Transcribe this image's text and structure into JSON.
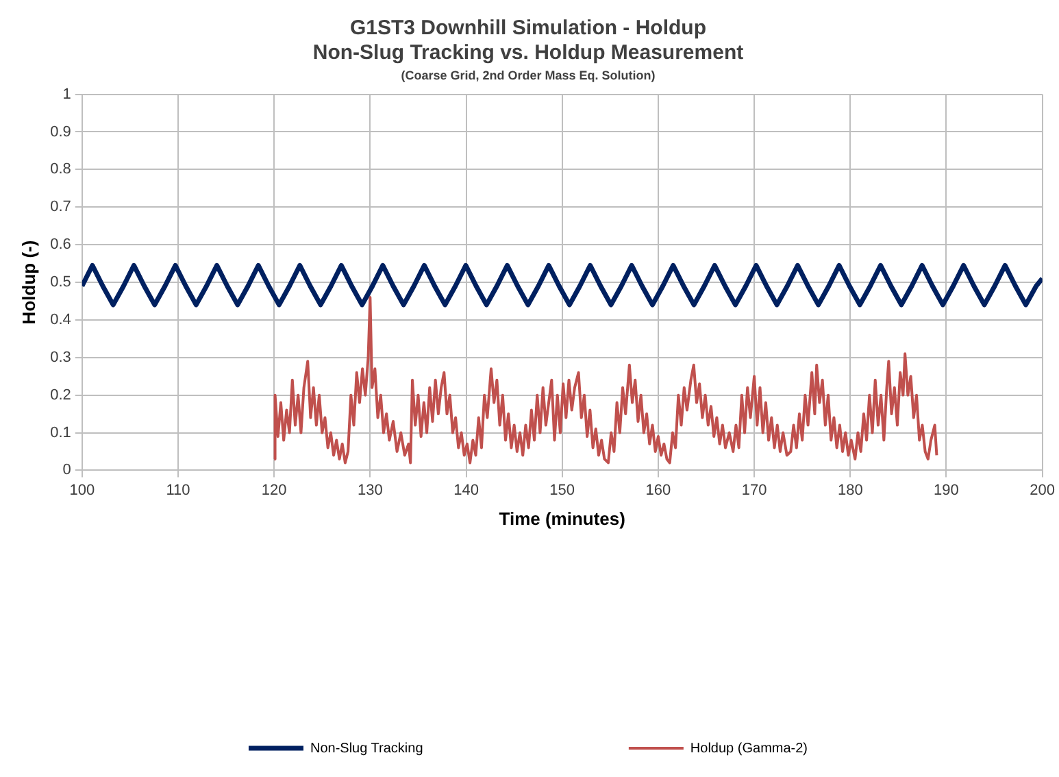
{
  "chart_data": {
    "type": "line",
    "title": "G1ST3 Downhill Simulation - Holdup",
    "subtitle": "Non-Slug Tracking vs. Holdup Measurement",
    "annotations": [
      "(Coarse Grid, 2nd Order Mass Eq. Solution)"
    ],
    "xlabel": "Time (minutes)",
    "ylabel": "Holdup (-)",
    "xlim": [
      100,
      200
    ],
    "xticks": [
      100,
      110,
      120,
      130,
      140,
      150,
      160,
      170,
      180,
      190,
      200
    ],
    "ylim": [
      0,
      1
    ],
    "yticks": [
      0,
      0.1,
      0.2,
      0.3,
      0.4,
      0.5,
      0.6,
      0.7,
      0.8,
      0.9,
      1
    ],
    "grid": true,
    "legend": "bottom",
    "marker": "none",
    "line_style": "solid",
    "series": [
      {
        "name": "Non-Slug Tracking",
        "color": "#002060",
        "x": [
          100,
          101.08,
          102.16,
          103.24,
          104.32,
          105.4,
          106.48,
          107.56,
          108.64,
          109.72,
          110.8,
          111.88,
          112.96,
          114.04,
          115.12,
          116.2,
          117.28,
          118.36,
          119.44,
          120.52,
          121.6,
          122.68,
          123.76,
          124.84,
          125.92,
          127,
          128.08,
          129.16,
          130.24,
          131.32,
          132.4,
          133.48,
          134.56,
          135.64,
          136.72,
          137.8,
          138.88,
          139.96,
          141.04,
          142.12,
          143.2,
          144.28,
          145.36,
          146.44,
          147.52,
          148.6,
          149.68,
          150.76,
          151.84,
          152.92,
          154,
          155.08,
          156.16,
          157.24,
          158.32,
          159.4,
          160.48,
          161.56,
          162.64,
          163.72,
          164.8,
          165.88,
          166.96,
          168.04,
          169.12,
          170.2,
          171.28,
          172.36,
          173.44,
          174.52,
          175.6,
          176.68,
          177.76,
          178.84,
          179.92,
          181,
          182.08,
          183.16,
          184.24,
          185.32,
          186.4,
          187.48,
          188.56,
          189.64,
          190.72,
          191.8,
          192.88,
          193.96,
          195.04,
          196.12,
          197.2,
          198.28,
          199.36,
          200
        ],
        "values": [
          0.49,
          0.545,
          0.49,
          0.44,
          0.49,
          0.545,
          0.49,
          0.44,
          0.49,
          0.545,
          0.49,
          0.44,
          0.49,
          0.545,
          0.49,
          0.44,
          0.49,
          0.545,
          0.49,
          0.44,
          0.49,
          0.545,
          0.49,
          0.44,
          0.49,
          0.545,
          0.49,
          0.44,
          0.49,
          0.545,
          0.49,
          0.44,
          0.49,
          0.545,
          0.49,
          0.44,
          0.49,
          0.545,
          0.49,
          0.44,
          0.49,
          0.545,
          0.49,
          0.44,
          0.49,
          0.545,
          0.49,
          0.44,
          0.49,
          0.545,
          0.49,
          0.44,
          0.49,
          0.545,
          0.49,
          0.44,
          0.49,
          0.545,
          0.49,
          0.44,
          0.49,
          0.545,
          0.49,
          0.44,
          0.49,
          0.545,
          0.49,
          0.44,
          0.49,
          0.545,
          0.49,
          0.44,
          0.49,
          0.545,
          0.49,
          0.44,
          0.49,
          0.545,
          0.49,
          0.44,
          0.49,
          0.545,
          0.49,
          0.44,
          0.49,
          0.545,
          0.49,
          0.44,
          0.49,
          0.545,
          0.49,
          0.44,
          0.49,
          0.51
        ]
      },
      {
        "name": "Holdup (Gamma-2)",
        "color": "#c0504d",
        "x": [
          120,
          120.1,
          120.4,
          120.7,
          121,
          121.3,
          121.6,
          121.9,
          122.2,
          122.5,
          122.8,
          123.1,
          123.5,
          123.8,
          124.1,
          124.4,
          124.7,
          125,
          125.3,
          125.6,
          125.9,
          126.2,
          126.5,
          126.8,
          127.1,
          127.4,
          127.7,
          128,
          128.3,
          128.6,
          128.9,
          129.2,
          129.5,
          129.8,
          130,
          130.2,
          130.5,
          130.8,
          131.1,
          131.4,
          131.7,
          132,
          132.4,
          132.8,
          133.2,
          133.6,
          134,
          134.2,
          134.4,
          134.7,
          135,
          135.3,
          135.6,
          135.9,
          136.2,
          136.5,
          136.8,
          137.1,
          137.4,
          137.7,
          138,
          138.3,
          138.6,
          138.9,
          139.2,
          139.5,
          139.8,
          140.1,
          140.4,
          140.7,
          141,
          141.3,
          141.6,
          141.9,
          142.2,
          142.6,
          142.9,
          143.2,
          143.5,
          143.8,
          144.1,
          144.4,
          144.7,
          145,
          145.3,
          145.6,
          145.9,
          146.2,
          146.5,
          146.8,
          147.1,
          147.4,
          147.7,
          148,
          148.3,
          148.6,
          148.9,
          149.2,
          149.5,
          149.8,
          150.1,
          150.4,
          150.7,
          151,
          151.3,
          151.7,
          152,
          152.3,
          152.6,
          152.9,
          153.2,
          153.5,
          153.8,
          154.1,
          154.4,
          154.8,
          155.1,
          155.4,
          155.7,
          156,
          156.3,
          156.6,
          157,
          157.3,
          157.6,
          157.9,
          158.2,
          158.5,
          158.8,
          159.1,
          159.4,
          159.7,
          160,
          160.3,
          160.6,
          160.9,
          161.2,
          161.5,
          161.8,
          162.1,
          162.4,
          162.7,
          163,
          163.4,
          163.7,
          164,
          164.3,
          164.6,
          164.9,
          165.2,
          165.5,
          165.8,
          166.1,
          166.4,
          166.7,
          167,
          167.4,
          167.8,
          168.1,
          168.4,
          168.7,
          169,
          169.3,
          169.6,
          170,
          170.3,
          170.6,
          170.9,
          171.2,
          171.5,
          171.8,
          172.1,
          172.4,
          172.7,
          173,
          173.4,
          173.8,
          174.1,
          174.4,
          174.7,
          175,
          175.3,
          175.6,
          176,
          176.3,
          176.5,
          176.8,
          177.1,
          177.4,
          177.7,
          178,
          178.3,
          178.6,
          178.9,
          179.2,
          179.5,
          179.8,
          180.1,
          180.5,
          180.8,
          181.1,
          181.4,
          181.7,
          182,
          182.3,
          182.6,
          182.9,
          183.2,
          183.5,
          183.8,
          184,
          184.3,
          184.6,
          184.9,
          185.2,
          185.5,
          185.7,
          186,
          186.3,
          186.6,
          186.9,
          187.2,
          187.5,
          187.8,
          188.1,
          188.4,
          188.8,
          189
        ],
        "values": [
          0.03,
          0.2,
          0.09,
          0.18,
          0.08,
          0.16,
          0.1,
          0.24,
          0.12,
          0.2,
          0.1,
          0.22,
          0.29,
          0.14,
          0.22,
          0.12,
          0.2,
          0.1,
          0.14,
          0.06,
          0.1,
          0.04,
          0.08,
          0.03,
          0.07,
          0.02,
          0.05,
          0.2,
          0.12,
          0.26,
          0.18,
          0.27,
          0.2,
          0.3,
          0.46,
          0.22,
          0.27,
          0.14,
          0.2,
          0.1,
          0.15,
          0.08,
          0.13,
          0.05,
          0.1,
          0.04,
          0.07,
          0.02,
          0.24,
          0.12,
          0.2,
          0.09,
          0.18,
          0.1,
          0.22,
          0.13,
          0.24,
          0.15,
          0.22,
          0.26,
          0.15,
          0.2,
          0.1,
          0.14,
          0.06,
          0.1,
          0.04,
          0.07,
          0.02,
          0.08,
          0.04,
          0.14,
          0.06,
          0.2,
          0.14,
          0.27,
          0.18,
          0.24,
          0.12,
          0.2,
          0.08,
          0.15,
          0.06,
          0.12,
          0.05,
          0.1,
          0.04,
          0.12,
          0.06,
          0.16,
          0.08,
          0.2,
          0.1,
          0.22,
          0.12,
          0.18,
          0.24,
          0.08,
          0.2,
          0.1,
          0.23,
          0.14,
          0.24,
          0.16,
          0.22,
          0.26,
          0.14,
          0.2,
          0.09,
          0.16,
          0.06,
          0.11,
          0.04,
          0.08,
          0.03,
          0.02,
          0.1,
          0.05,
          0.18,
          0.1,
          0.22,
          0.15,
          0.28,
          0.18,
          0.24,
          0.13,
          0.2,
          0.1,
          0.15,
          0.07,
          0.12,
          0.05,
          0.09,
          0.04,
          0.07,
          0.03,
          0.02,
          0.1,
          0.06,
          0.2,
          0.12,
          0.22,
          0.16,
          0.24,
          0.28,
          0.18,
          0.23,
          0.14,
          0.2,
          0.12,
          0.17,
          0.09,
          0.14,
          0.07,
          0.12,
          0.06,
          0.1,
          0.05,
          0.12,
          0.06,
          0.2,
          0.1,
          0.22,
          0.14,
          0.25,
          0.12,
          0.22,
          0.1,
          0.18,
          0.08,
          0.14,
          0.06,
          0.12,
          0.05,
          0.1,
          0.04,
          0.05,
          0.12,
          0.06,
          0.15,
          0.08,
          0.2,
          0.12,
          0.26,
          0.15,
          0.28,
          0.18,
          0.24,
          0.12,
          0.2,
          0.08,
          0.14,
          0.06,
          0.12,
          0.05,
          0.1,
          0.04,
          0.08,
          0.03,
          0.1,
          0.05,
          0.15,
          0.08,
          0.2,
          0.1,
          0.24,
          0.12,
          0.2,
          0.08,
          0.22,
          0.29,
          0.15,
          0.22,
          0.12,
          0.26,
          0.2,
          0.31,
          0.2,
          0.25,
          0.14,
          0.2,
          0.08,
          0.12,
          0.05,
          0.03,
          0.08,
          0.12,
          0.04
        ]
      }
    ]
  }
}
